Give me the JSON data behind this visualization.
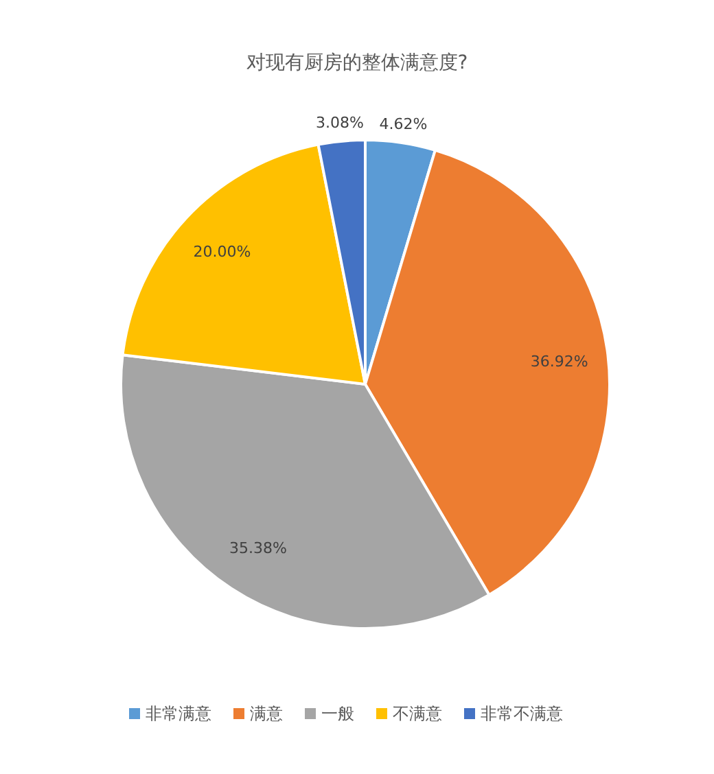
{
  "chart_data": {
    "type": "pie",
    "title": "对现有厨房的整体满意度?",
    "categories": [
      "非常满意",
      "满意",
      "一般",
      "不满意",
      "非常不满意"
    ],
    "values": [
      4.62,
      36.92,
      35.38,
      20.0,
      3.08
    ],
    "value_labels": [
      "4.62%",
      "36.92%",
      "35.38%",
      "20.00%",
      "3.08%"
    ],
    "colors": [
      "#5b9bd5",
      "#ed7d31",
      "#a5a5a5",
      "#ffc000",
      "#4472c4"
    ],
    "legend": "bottom"
  }
}
